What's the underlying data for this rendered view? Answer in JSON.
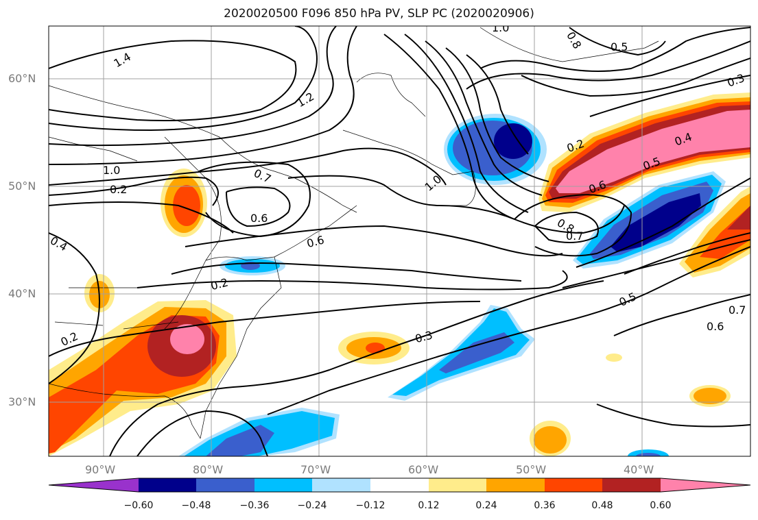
{
  "title": "2020020500 F096 850 hPa PV, SLP PC (2020020906)",
  "lat_labels": [
    "60°N",
    "50°N",
    "40°N",
    "30°N"
  ],
  "lon_labels": [
    "90°W",
    "80°W",
    "70°W",
    "60°W",
    "50°W",
    "40°W"
  ],
  "colorbar": {
    "ticks": [
      "−0.60",
      "−0.48",
      "−0.36",
      "−0.24",
      "−0.12",
      "0.12",
      "0.24",
      "0.36",
      "0.48",
      "0.60"
    ],
    "colors": [
      "#9932cc",
      "#00008b",
      "#3a5fcd",
      "#00bfff",
      "#b0e2ff",
      "#ffffff",
      "#ffec8b",
      "#ffa500",
      "#ff4500",
      "#b22222",
      "#ff82ab"
    ]
  },
  "contour_labels": [
    "1.4",
    "1.2",
    "1.0",
    "1.0",
    "1.0",
    "0.8",
    "0.5",
    "0.3",
    "0.2",
    "0.4",
    "0.5",
    "0.6",
    "0.7",
    "0.6",
    "0.8",
    "0.7",
    "0.6",
    "0.4",
    "0.2",
    "0.2",
    "0.5",
    "0.7",
    "0.6",
    "0.3",
    "0.2"
  ]
}
